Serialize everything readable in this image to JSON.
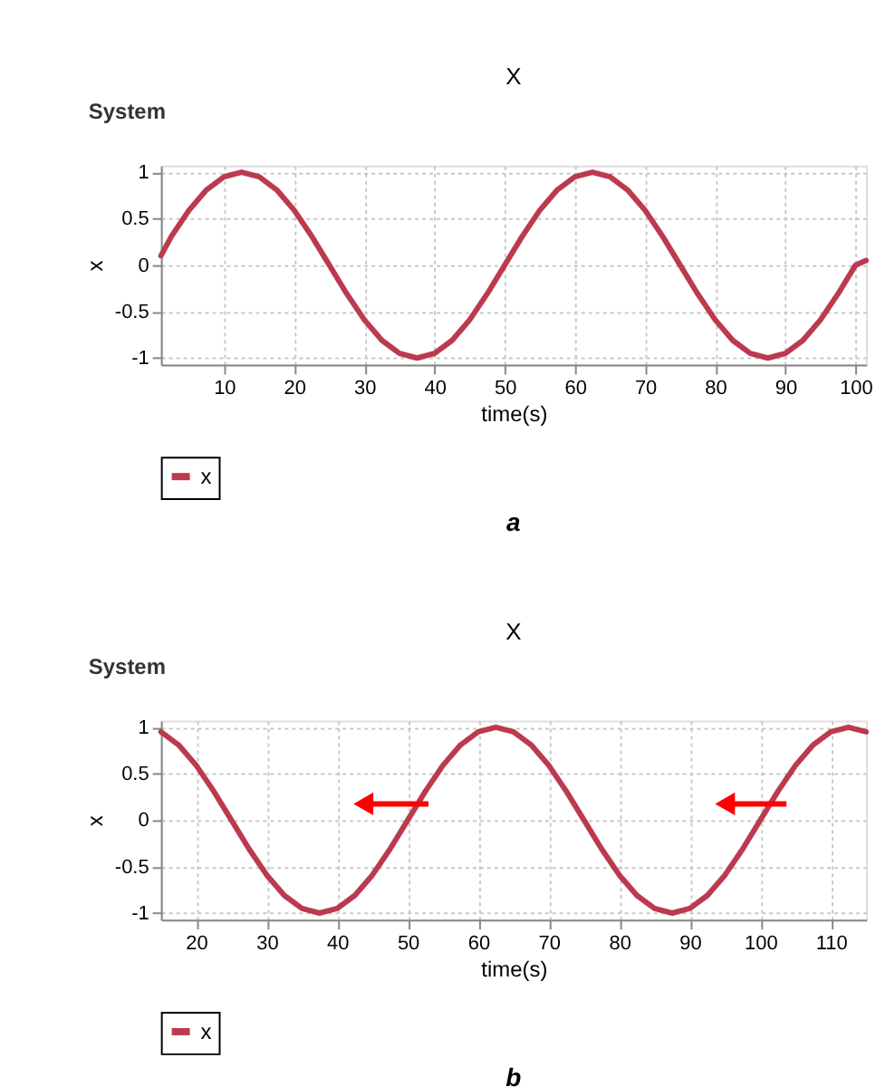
{
  "chart_data": [
    {
      "type": "line",
      "title": "X",
      "xlabel": "time(s)",
      "ylabel": "x",
      "annotations": [
        "System",
        "a"
      ],
      "x": [
        1,
        2.5,
        5,
        7.5,
        10,
        12.5,
        15,
        17.5,
        20,
        22.5,
        25,
        27.5,
        30,
        32.5,
        35,
        37.5,
        40,
        42.5,
        45,
        47.5,
        50,
        52.5,
        55,
        57.5,
        60,
        62.5,
        65,
        67.5,
        70,
        72.5,
        75,
        77.5,
        80,
        82.5,
        85,
        87.5,
        90,
        92.5,
        95,
        97.5,
        100,
        101.5
      ],
      "series": [
        {
          "name": "x",
          "color": "#bb3a50",
          "values": [
            0.1,
            0.31,
            0.59,
            0.81,
            0.95,
            1,
            0.95,
            0.81,
            0.59,
            0.31,
            0,
            -0.31,
            -0.59,
            -0.81,
            -0.95,
            -1,
            -0.95,
            -0.81,
            -0.59,
            -0.31,
            0,
            0.31,
            0.59,
            0.81,
            0.95,
            1,
            0.95,
            0.81,
            0.59,
            0.31,
            0,
            -0.31,
            -0.59,
            -0.81,
            -0.95,
            -1,
            -0.95,
            -0.81,
            -0.59,
            -0.31,
            0,
            0.05
          ]
        }
      ],
      "xlim": [
        1,
        101.5
      ],
      "xticks": [
        10,
        20,
        30,
        40,
        50,
        60,
        70,
        80,
        90,
        100
      ],
      "ylim": [
        -1.07,
        1.07
      ],
      "yticks": [
        -1,
        -0.5,
        0,
        0.5,
        1
      ],
      "grid": true,
      "legend": "bottom",
      "line_style": "solid",
      "marker": "none"
    },
    {
      "type": "line",
      "title": "X",
      "xlabel": "time(s)",
      "ylabel": "x",
      "annotations": [
        "System",
        "b"
      ],
      "x": [
        15,
        17.5,
        20,
        22.5,
        25,
        27.5,
        30,
        32.5,
        35,
        37.5,
        40,
        42.5,
        45,
        47.5,
        50,
        52.5,
        55,
        57.5,
        60,
        62.5,
        65,
        67.5,
        70,
        72.5,
        75,
        77.5,
        80,
        82.5,
        85,
        87.5,
        90,
        92.5,
        95,
        97.5,
        100,
        102.5,
        105,
        107.5,
        110,
        112.5,
        115
      ],
      "series": [
        {
          "name": "x",
          "color": "#bb3a50",
          "values": [
            0.95,
            0.81,
            0.59,
            0.31,
            0,
            -0.31,
            -0.59,
            -0.81,
            -0.95,
            -1,
            -0.95,
            -0.81,
            -0.59,
            -0.31,
            0,
            0.31,
            0.59,
            0.81,
            0.95,
            1,
            0.95,
            0.81,
            0.59,
            0.31,
            0,
            -0.31,
            -0.59,
            -0.81,
            -0.95,
            -1,
            -0.95,
            -0.81,
            -0.59,
            -0.31,
            0,
            0.31,
            0.59,
            0.81,
            0.95,
            1,
            0.95
          ]
        }
      ],
      "xlim": [
        15,
        115
      ],
      "xticks": [
        20,
        30,
        40,
        50,
        60,
        70,
        80,
        90,
        100,
        110
      ],
      "ylim": [
        -1.07,
        1.07
      ],
      "yticks": [
        -1,
        -0.5,
        0,
        0.5,
        1
      ],
      "grid": true,
      "legend": "bottom",
      "line_style": "solid",
      "marker": "none"
    }
  ]
}
